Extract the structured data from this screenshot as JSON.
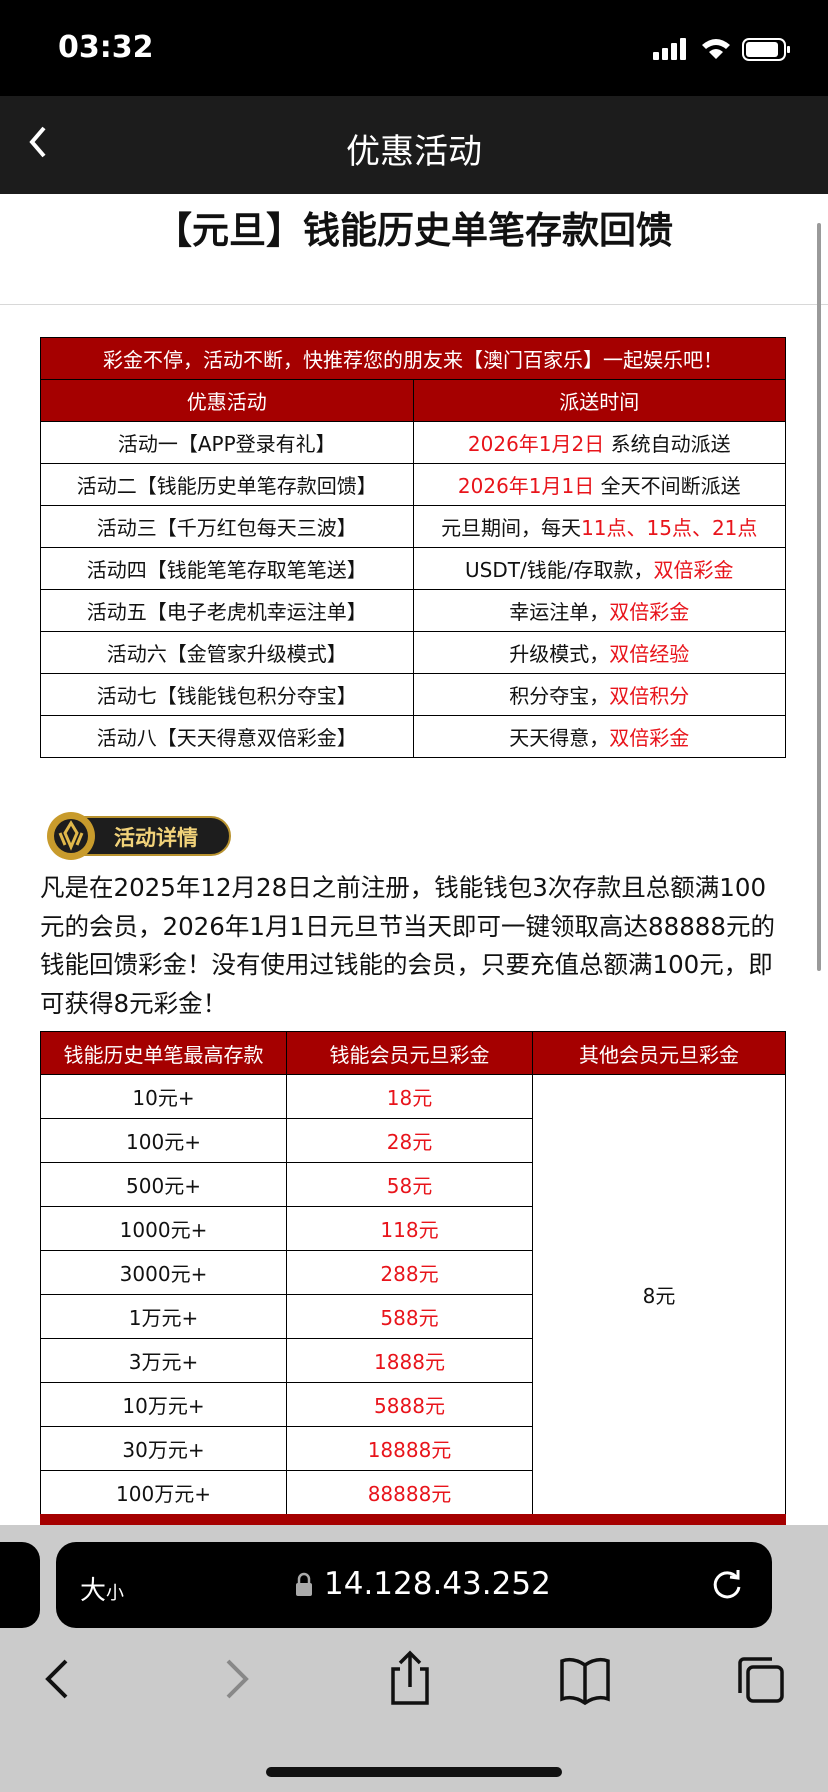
{
  "status_bar": {
    "time": "03:32"
  },
  "header": {
    "title": "优惠活动"
  },
  "page_title": "【元旦】钱能历史单笔存款回馈",
  "table1": {
    "banner": "彩金不停，活动不断，快推荐您的朋友来【澳门百家乐】一起娱乐吧！",
    "headers": [
      "优惠活动",
      "派送时间"
    ],
    "rows": [
      {
        "name": "活动一【APP登录有礼】",
        "time": [
          {
            "text": "2026年1月2日",
            "highlight": true
          },
          {
            "text": " 系统自动派送",
            "highlight": false
          }
        ]
      },
      {
        "name": "活动二【钱能历史单笔存款回馈】",
        "time": [
          {
            "text": "2026年1月1日",
            "highlight": true
          },
          {
            "text": " 全天不间断派送",
            "highlight": false
          }
        ]
      },
      {
        "name": "活动三【千万红包每天三波】",
        "time": [
          {
            "text": "元旦期间，每天",
            "highlight": false
          },
          {
            "text": "11点、15点、21点",
            "highlight": true
          }
        ]
      },
      {
        "name": "活动四【钱能笔笔存取笔笔送】",
        "time": [
          {
            "text": "USDT/钱能/存取款，",
            "highlight": false
          },
          {
            "text": "双倍彩金",
            "highlight": true
          }
        ]
      },
      {
        "name": "活动五【电子老虎机幸运注单】",
        "time": [
          {
            "text": "幸运注单，",
            "highlight": false
          },
          {
            "text": "双倍彩金",
            "highlight": true
          }
        ]
      },
      {
        "name": "活动六【金管家升级模式】",
        "time": [
          {
            "text": "升级模式，",
            "highlight": false
          },
          {
            "text": "双倍经验",
            "highlight": true
          }
        ]
      },
      {
        "name": "活动七【钱能钱包积分夺宝】",
        "time": [
          {
            "text": "积分夺宝，",
            "highlight": false
          },
          {
            "text": "双倍积分",
            "highlight": true
          }
        ]
      },
      {
        "name": "活动八【天天得意双倍彩金】",
        "time": [
          {
            "text": "天天得意，",
            "highlight": false
          },
          {
            "text": "双倍彩金",
            "highlight": true
          }
        ]
      }
    ]
  },
  "badge": "活动详情",
  "paragraph": "凡是在2025年12月28日之前注册，钱能钱包3次存款且总额满100元的会员，2026年1月1日元旦节当天即可一键领取高达88888元的钱能回馈彩金！没有使用过钱能的会员，只要充值总额满100元，即可获得8元彩金！",
  "table2": {
    "headers": [
      "钱能历史单笔最高存款",
      "钱能会员元旦彩金",
      "其他会员元旦彩金"
    ],
    "rows": [
      [
        "10元+",
        "18元"
      ],
      [
        "100元+",
        "28元"
      ],
      [
        "500元+",
        "58元"
      ],
      [
        "1000元+",
        "118元"
      ],
      [
        "3000元+",
        "288元"
      ],
      [
        "1万元+",
        "588元"
      ],
      [
        "3万元+",
        "1888元"
      ],
      [
        "10万元+",
        "5888元"
      ],
      [
        "30万元+",
        "18888元"
      ],
      [
        "100万元+",
        "88888元"
      ]
    ],
    "other_bonus": "8元"
  },
  "browser": {
    "text_size_big": "大",
    "text_size_small": "小",
    "url": "14.128.43.252"
  }
}
